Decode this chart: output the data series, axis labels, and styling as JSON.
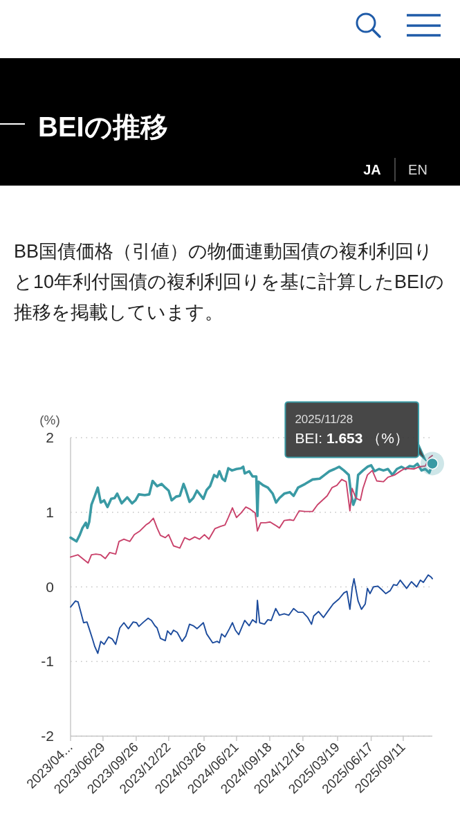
{
  "chart_data": {
    "type": "line",
    "title": "BEIの推移",
    "subtitle": "BB国債価格（引値）の物価連動国債の複利利回りと10年利付国債の複利利回りを基に計算したBEIの推移を掲載しています。",
    "ylabel": "(%)",
    "xlim": [
      "2023-04-03",
      "2025-11-28"
    ],
    "xticks": [
      {
        "value": "2023-04-03",
        "label": "2023/04..."
      },
      {
        "value": "2023-06-29",
        "label": "2023/06/29"
      },
      {
        "value": "2023-09-26",
        "label": "2023/09/26"
      },
      {
        "value": "2023-12-22",
        "label": "2023/12/22"
      },
      {
        "value": "2024-03-26",
        "label": "2024/03/26"
      },
      {
        "value": "2024-06-21",
        "label": "2024/06/21"
      },
      {
        "value": "2024-09-18",
        "label": "2024/09/18"
      },
      {
        "value": "2024-12-16",
        "label": "2024/12/16"
      },
      {
        "value": "2025-03-19",
        "label": "2025/03/19"
      },
      {
        "value": "2025-06-17",
        "label": "2025/06/17"
      },
      {
        "value": "2025-09-11",
        "label": "2025/09/11"
      }
    ],
    "ylim": [
      -2,
      2
    ],
    "yticks": [
      -2,
      -1,
      0,
      1,
      2
    ],
    "grid": "y",
    "series": [
      {
        "color": "#3a9aa4",
        "x": [
          "2023-04-03",
          "2023-04-19",
          "2023-04-28",
          "2023-05-05",
          "2023-05-14",
          "2023-05-18",
          "2023-05-23",
          "2023-05-29",
          "2023-06-07",
          "2023-06-15",
          "2023-06-23",
          "2023-07-02",
          "2023-07-11",
          "2023-07-21",
          "2023-07-30",
          "2023-08-06",
          "2023-08-18",
          "2023-09-02",
          "2023-09-15",
          "2023-09-24",
          "2023-10-03",
          "2023-10-19",
          "2023-10-31",
          "2023-11-09",
          "2023-11-21",
          "2023-12-03",
          "2023-12-13",
          "2023-12-22",
          "2023-12-30",
          "2024-01-11",
          "2024-01-21",
          "2024-01-31",
          "2024-02-06",
          "2024-02-16",
          "2024-02-26",
          "2024-03-07",
          "2024-03-24",
          "2024-04-02",
          "2024-04-11",
          "2024-04-22",
          "2024-04-30",
          "2024-05-06",
          "2024-05-14",
          "2024-05-21",
          "2024-05-30",
          "2024-06-09",
          "2024-06-21",
          "2024-07-03",
          "2024-07-09",
          "2024-07-13",
          "2024-07-25",
          "2024-08-03",
          "2024-08-13",
          "2024-08-16",
          "2024-08-19",
          "2024-09-01",
          "2024-09-13",
          "2024-09-26",
          "2024-10-05",
          "2024-10-14",
          "2024-10-27",
          "2024-11-11",
          "2024-11-21",
          "2024-12-03",
          "2024-12-22",
          "2025-01-11",
          "2025-01-30",
          "2025-02-12",
          "2025-02-25",
          "2025-03-11",
          "2025-03-23",
          "2025-04-05",
          "2025-04-18",
          "2025-04-24",
          "2025-04-30",
          "2025-05-07",
          "2025-05-13",
          "2025-05-26",
          "2025-06-07",
          "2025-06-17",
          "2025-06-26",
          "2025-07-08",
          "2025-07-20",
          "2025-08-01",
          "2025-08-13",
          "2025-08-25",
          "2025-09-06",
          "2025-09-17",
          "2025-09-28",
          "2025-10-09",
          "2025-10-19",
          "2025-10-30",
          "2025-11-09",
          "2025-11-20",
          "2025-11-28"
        ],
        "values": [
          0.66,
          0.61,
          0.7,
          0.79,
          0.86,
          0.79,
          0.87,
          1.1,
          1.22,
          1.33,
          1.13,
          1.16,
          1.07,
          1.18,
          1.19,
          1.25,
          1.12,
          1.2,
          1.12,
          1.16,
          1.24,
          1.23,
          1.24,
          1.42,
          1.35,
          1.38,
          1.33,
          1.29,
          1.16,
          1.21,
          1.22,
          1.38,
          1.3,
          1.14,
          1.19,
          1.29,
          1.18,
          1.3,
          1.35,
          1.5,
          1.47,
          1.55,
          1.45,
          1.42,
          1.59,
          1.56,
          1.58,
          1.59,
          1.61,
          1.52,
          1.55,
          1.48,
          1.48,
          0.95,
          1.41,
          1.36,
          1.33,
          1.25,
          1.13,
          1.19,
          1.25,
          1.27,
          1.22,
          1.33,
          1.38,
          1.44,
          1.45,
          1.5,
          1.55,
          1.58,
          1.61,
          1.56,
          1.5,
          1.25,
          1.1,
          1.19,
          1.5,
          1.56,
          1.61,
          1.63,
          1.55,
          1.58,
          1.56,
          1.58,
          1.5,
          1.58,
          1.61,
          1.58,
          1.62,
          1.61,
          1.65,
          1.56,
          1.58,
          1.53,
          1.653
        ]
      },
      {
        "color": "#c9416a",
        "x": [
          "2023-04-03",
          "2023-04-23",
          "2023-05-05",
          "2023-05-20",
          "2023-05-29",
          "2023-06-10",
          "2023-06-23",
          "2023-07-05",
          "2023-07-17",
          "2023-08-02",
          "2023-08-11",
          "2023-08-24",
          "2023-09-09",
          "2023-09-21",
          "2023-10-06",
          "2023-10-22",
          "2023-10-31",
          "2023-11-11",
          "2023-11-21",
          "2023-11-30",
          "2023-12-13",
          "2023-12-22",
          "2024-01-04",
          "2024-01-21",
          "2024-02-03",
          "2024-02-16",
          "2024-03-01",
          "2024-03-14",
          "2024-03-27",
          "2024-04-08",
          "2024-04-24",
          "2024-05-09",
          "2024-05-21",
          "2024-05-30",
          "2024-06-10",
          "2024-06-21",
          "2024-07-03",
          "2024-07-16",
          "2024-07-28",
          "2024-08-10",
          "2024-08-16",
          "2024-08-25",
          "2024-09-07",
          "2024-09-19",
          "2024-10-02",
          "2024-10-14",
          "2024-10-27",
          "2024-11-11",
          "2024-11-21",
          "2024-12-06",
          "2024-12-22",
          "2025-01-11",
          "2025-01-24",
          "2025-02-06",
          "2025-02-19",
          "2025-03-04",
          "2025-03-17",
          "2025-03-30",
          "2025-04-11",
          "2025-04-21",
          "2025-04-27",
          "2025-05-07",
          "2025-05-19",
          "2025-05-26",
          "2025-06-07",
          "2025-06-20",
          "2025-07-02",
          "2025-07-20",
          "2025-08-01",
          "2025-08-19",
          "2025-09-06",
          "2025-09-17",
          "2025-10-09",
          "2025-10-24",
          "2025-11-09",
          "2025-11-20",
          "2025-11-28"
        ],
        "values": [
          0.4,
          0.43,
          0.38,
          0.32,
          0.43,
          0.44,
          0.43,
          0.38,
          0.46,
          0.44,
          0.61,
          0.64,
          0.61,
          0.7,
          0.75,
          0.83,
          0.86,
          0.92,
          0.79,
          0.69,
          0.66,
          0.7,
          0.55,
          0.52,
          0.66,
          0.63,
          0.67,
          0.64,
          0.7,
          0.64,
          0.78,
          0.81,
          0.83,
          0.93,
          1.06,
          0.93,
          0.99,
          1.07,
          1.04,
          0.99,
          0.75,
          0.86,
          0.86,
          0.87,
          0.83,
          0.79,
          0.89,
          0.9,
          0.89,
          1.02,
          1.01,
          1.01,
          1.1,
          1.16,
          1.22,
          1.33,
          1.36,
          1.44,
          1.41,
          1.02,
          1.32,
          1.19,
          1.16,
          1.32,
          1.5,
          1.56,
          1.42,
          1.41,
          1.47,
          1.5,
          1.56,
          1.59,
          1.58,
          1.61,
          1.62,
          1.73,
          1.76
        ]
      },
      {
        "color": "#1c4b9c",
        "x": [
          "2023-04-03",
          "2023-04-16",
          "2023-04-23",
          "2023-04-29",
          "2023-05-08",
          "2023-05-17",
          "2023-05-23",
          "2023-06-01",
          "2023-06-07",
          "2023-06-15",
          "2023-06-23",
          "2023-07-02",
          "2023-07-14",
          "2023-07-24",
          "2023-08-02",
          "2023-08-13",
          "2023-08-24",
          "2023-09-05",
          "2023-09-18",
          "2023-09-27",
          "2023-10-03",
          "2023-10-16",
          "2023-10-28",
          "2023-11-06",
          "2023-11-15",
          "2023-11-21",
          "2023-11-30",
          "2023-12-13",
          "2023-12-19",
          "2023-12-28",
          "2024-01-04",
          "2024-01-14",
          "2024-01-27",
          "2024-02-06",
          "2024-02-16",
          "2024-02-26",
          "2024-03-07",
          "2024-03-24",
          "2024-04-02",
          "2024-04-18",
          "2024-04-30",
          "2024-05-06",
          "2024-05-12",
          "2024-05-21",
          "2024-06-02",
          "2024-06-10",
          "2024-06-18",
          "2024-06-27",
          "2024-07-13",
          "2024-07-25",
          "2024-08-03",
          "2024-08-13",
          "2024-08-16",
          "2024-08-22",
          "2024-09-04",
          "2024-09-13",
          "2024-09-22",
          "2024-10-04",
          "2024-10-14",
          "2024-10-27",
          "2024-11-08",
          "2024-11-21",
          "2024-12-03",
          "2024-12-16",
          "2024-12-29",
          "2025-01-08",
          "2025-01-14",
          "2025-01-27",
          "2025-02-09",
          "2025-02-19",
          "2025-03-07",
          "2025-03-23",
          "2025-04-05",
          "2025-04-13",
          "2025-04-21",
          "2025-04-27",
          "2025-05-02",
          "2025-05-07",
          "2025-05-13",
          "2025-05-22",
          "2025-06-01",
          "2025-06-07",
          "2025-06-14",
          "2025-06-23",
          "2025-07-05",
          "2025-07-14",
          "2025-07-26",
          "2025-08-07",
          "2025-08-16",
          "2025-08-25",
          "2025-09-03",
          "2025-09-20",
          "2025-10-03",
          "2025-10-17",
          "2025-10-27",
          "2025-11-04",
          "2025-11-17",
          "2025-11-25",
          "2025-11-28"
        ],
        "values": [
          -0.27,
          -0.19,
          -0.2,
          -0.31,
          -0.48,
          -0.47,
          -0.56,
          -0.7,
          -0.8,
          -0.89,
          -0.73,
          -0.77,
          -0.67,
          -0.7,
          -0.77,
          -0.55,
          -0.48,
          -0.56,
          -0.47,
          -0.48,
          -0.53,
          -0.47,
          -0.42,
          -0.45,
          -0.52,
          -0.55,
          -0.69,
          -0.72,
          -0.59,
          -0.64,
          -0.58,
          -0.61,
          -0.73,
          -0.66,
          -0.5,
          -0.52,
          -0.56,
          -0.48,
          -0.63,
          -0.75,
          -0.73,
          -0.75,
          -0.63,
          -0.67,
          -0.56,
          -0.48,
          -0.58,
          -0.64,
          -0.45,
          -0.52,
          -0.44,
          -0.48,
          -0.18,
          -0.48,
          -0.5,
          -0.44,
          -0.45,
          -0.29,
          -0.38,
          -0.36,
          -0.38,
          -0.29,
          -0.34,
          -0.34,
          -0.41,
          -0.5,
          -0.39,
          -0.33,
          -0.41,
          -0.34,
          -0.23,
          -0.16,
          -0.08,
          -0.06,
          -0.3,
          -0.02,
          0.11,
          -0.03,
          -0.19,
          -0.3,
          -0.23,
          -0.02,
          -0.09,
          0.0,
          0.01,
          -0.03,
          -0.09,
          -0.05,
          0.03,
          0.02,
          0.09,
          -0.02,
          0.07,
          0.0,
          0.09,
          0.06,
          0.16,
          0.13,
          0.11
        ]
      }
    ],
    "annotations": [
      "JA",
      "EN",
      {
        "text": "2025/11/28\nBEI: 1.653 （%）",
        "x": "2025-11-28",
        "y": 1.653
      }
    ]
  }
}
